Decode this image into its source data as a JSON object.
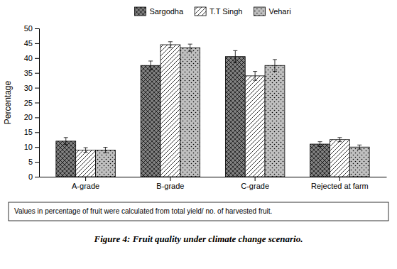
{
  "chart_data": {
    "type": "bar",
    "categories": [
      "A-grade",
      "B-grade",
      "C-grade",
      "Rejected at farm"
    ],
    "series": [
      {
        "name": "Sargodha",
        "color": "#808080",
        "values": [
          12,
          37.5,
          40.5,
          11
        ],
        "errors": [
          1.2,
          1.5,
          2.0,
          0.8
        ]
      },
      {
        "name": "T.T Singh",
        "color": "#ffffff",
        "values": [
          9,
          44.5,
          34,
          12.5
        ],
        "errors": [
          0.8,
          1.0,
          1.5,
          0.7
        ]
      },
      {
        "name": "Vehari",
        "color": "#c0c0c0",
        "values": [
          9,
          43.5,
          37.5,
          10
        ],
        "errors": [
          0.9,
          1.2,
          2.0,
          0.7
        ]
      }
    ],
    "ylabel": "Percentage",
    "ylim": [
      0,
      50
    ],
    "yticks": [
      0,
      5,
      10,
      15,
      20,
      25,
      30,
      35,
      40,
      45,
      50
    ],
    "grid": false,
    "legend": "top",
    "annotations": [
      "Values in percentage of fruit were calculated from total yield/ no. of harvested fruit."
    ],
    "caption": "Figure 4: Fruit quality under climate change scenario."
  }
}
